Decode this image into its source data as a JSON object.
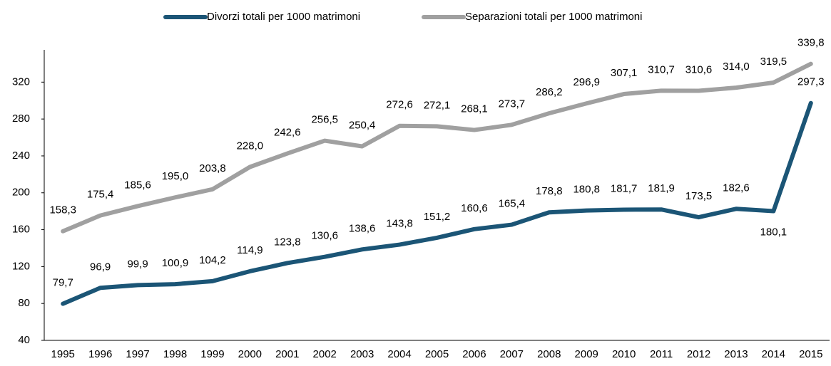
{
  "chart_data": {
    "type": "line",
    "categories": [
      "1995",
      "1996",
      "1997",
      "1998",
      "1999",
      "2000",
      "2001",
      "2002",
      "2003",
      "2004",
      "2005",
      "2006",
      "2007",
      "2008",
      "2009",
      "2010",
      "2011",
      "2012",
      "2013",
      "2014",
      "2015"
    ],
    "series": [
      {
        "name": "Divorzi totali per 1000 matrimoni",
        "color": "#1b5576",
        "values": [
          79.7,
          96.9,
          99.9,
          100.9,
          104.2,
          114.9,
          123.8,
          130.6,
          138.6,
          143.8,
          151.2,
          160.6,
          165.4,
          178.8,
          180.8,
          181.7,
          181.9,
          173.5,
          182.6,
          180.1,
          297.3
        ],
        "value_labels": [
          "79,7",
          "96,9",
          "99,9",
          "100,9",
          "104,2",
          "114,9",
          "123,8",
          "130,6",
          "138,6",
          "143,8",
          "151,2",
          "160,6",
          "165,4",
          "178,8",
          "180,8",
          "181,7",
          "181,9",
          "173,5",
          "182,6",
          "180,1",
          "297,3"
        ]
      },
      {
        "name": "Separazioni totali per 1000 matrimoni",
        "color": "#a0a0a0",
        "values": [
          158.3,
          175.4,
          185.6,
          195.0,
          203.8,
          228.0,
          242.6,
          256.5,
          250.4,
          272.6,
          272.1,
          268.1,
          273.7,
          286.2,
          296.9,
          307.1,
          310.7,
          310.6,
          314.0,
          319.5,
          339.8
        ],
        "value_labels": [
          "158,3",
          "175,4",
          "185,6",
          "195,0",
          "203,8",
          "228,0",
          "242,6",
          "256,5",
          "250,4",
          "272,6",
          "272,1",
          "268,1",
          "273,7",
          "286,2",
          "296,9",
          "307,1",
          "310,7",
          "310,6",
          "314,0",
          "319,5",
          "339,8"
        ]
      }
    ],
    "ylim": [
      40,
      355
    ],
    "yticks": [
      40,
      80,
      120,
      160,
      200,
      240,
      280,
      320
    ],
    "legend": "top"
  }
}
